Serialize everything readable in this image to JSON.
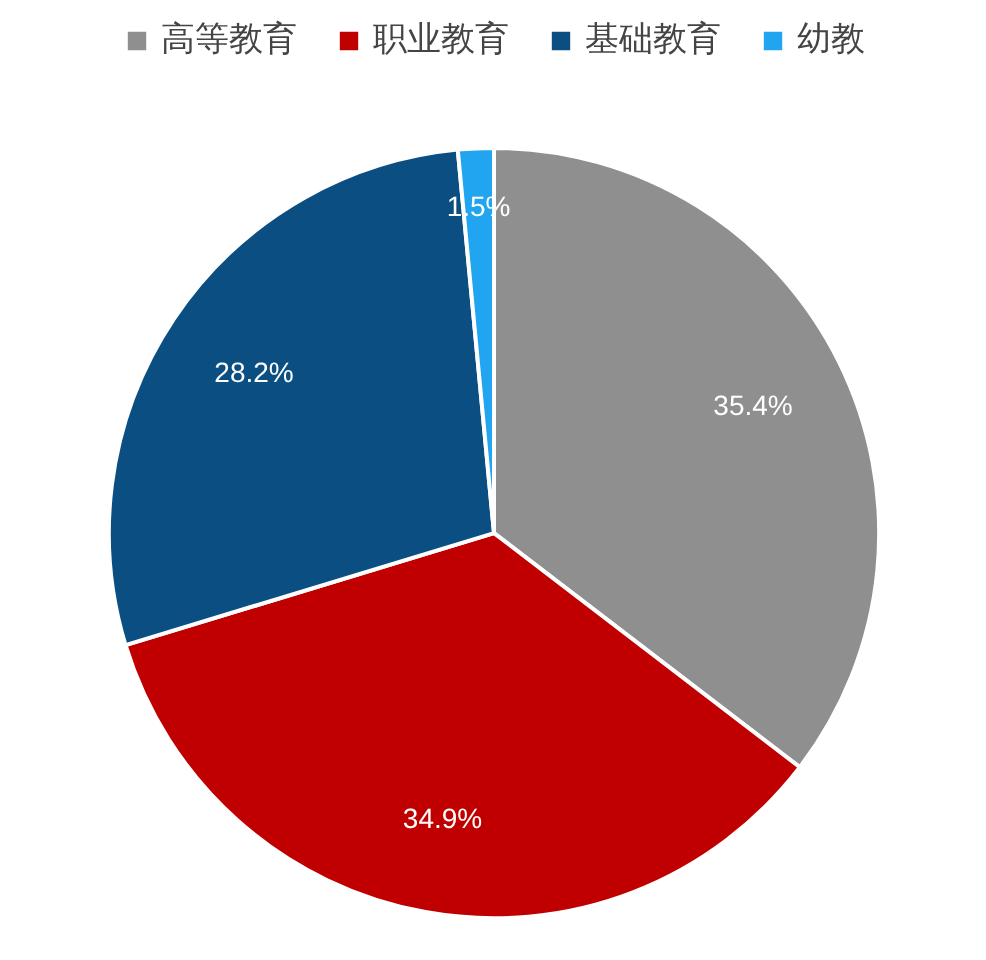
{
  "chart_data": {
    "type": "pie",
    "categories": [
      "高等教育",
      "职业教育",
      "基础教育",
      "幼教"
    ],
    "values": [
      35.4,
      34.9,
      28.2,
      1.5
    ],
    "colors": [
      "#8f8f8f",
      "#c00000",
      "#0b4f82",
      "#22a5f0"
    ],
    "value_labels": [
      "35.4%",
      "34.9%",
      "28.2%",
      "1.5%"
    ],
    "legend": "top"
  }
}
